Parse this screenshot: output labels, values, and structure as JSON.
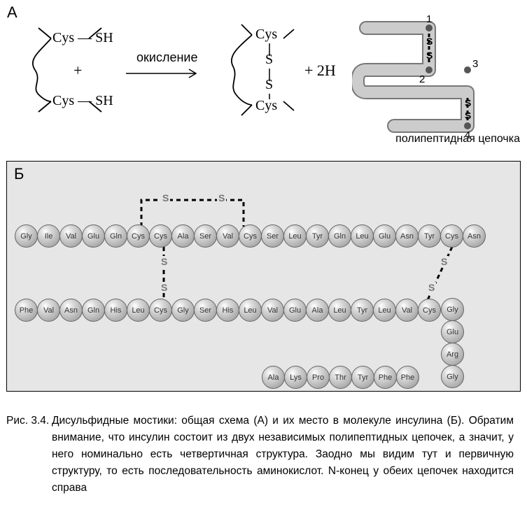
{
  "panelA": {
    "label": "А",
    "left_cys_top": "Cys — SH",
    "left_cys_bot": "Cys — SH",
    "plus": "+",
    "oxidation": "окисление",
    "right_cys_top": "Cys",
    "right_S1": "S",
    "right_S2": "S",
    "right_cys_bot": "Cys",
    "plus2H": "+ 2H",
    "poly_label": "полипептидная цепочка",
    "markers": {
      "m1": "1",
      "m2": "2",
      "m3": "3",
      "m4": "4"
    },
    "bridge_s": "S"
  },
  "panelB": {
    "label": "Б",
    "chain_a": [
      "Gly",
      "Ile",
      "Val",
      "Glu",
      "Gln",
      "Cys",
      "Cys",
      "Ala",
      "Ser",
      "Val",
      "Cys",
      "Ser",
      "Leu",
      "Tyr",
      "Gln",
      "Leu",
      "Glu",
      "Asn",
      "Tyr",
      "Cys",
      "Asn"
    ],
    "chain_b_row1": [
      "Phe",
      "Val",
      "Asn",
      "Gln",
      "His",
      "Leu",
      "Cys",
      "Gly",
      "Ser",
      "His",
      "Leu",
      "Val",
      "Glu",
      "Ala",
      "Leu",
      "Tyr",
      "Leu",
      "Val",
      "Cys"
    ],
    "chain_b_col": [
      "Gly",
      "Glu",
      "Arg",
      "Gly"
    ],
    "chain_b_row2": [
      "Phe",
      "Phe",
      "Tyr",
      "Thr",
      "Pro",
      "Lys",
      "Ala"
    ],
    "bond_s": "S",
    "aa_fill": "#c0c0c0",
    "aa_text_color": "#333333",
    "panel_bg": "#e6e6e6"
  },
  "caption": {
    "fignum": "Рис. 3.4.",
    "text": "Дисульфидные мостики: общая схема (А) и их место в молекуле инсулина (Б). Обратим внимание, что инсулин состоит из двух независимых полипептидных цепочек, а значит, у него номинально есть четвертичная структура. Заодно мы видим тут и первичную структуру, то есть последовательность аминокислот. N-конец у обеих цепочек находится справа"
  },
  "style": {
    "font_body": "Arial",
    "font_chem": "Georgia",
    "panelA_label_fontsize": 22,
    "chem_fontsize": 20,
    "oxidation_fontsize": 18,
    "caption_fontsize": 15.5,
    "aa_diameter": 33,
    "bond_stroke": "#000000",
    "bond_dash": "6 5",
    "arrow_color": "#000000",
    "chain_stroke": "#808080",
    "chain_fill": "#cccccc"
  }
}
